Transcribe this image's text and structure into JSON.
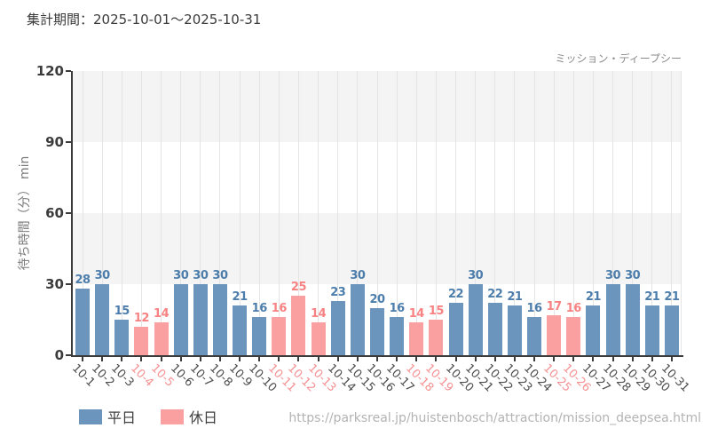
{
  "header": {
    "title": "集計期間：2025-10-01〜2025-10-31"
  },
  "chart_data": {
    "type": "bar",
    "title": "ミッション・ディープシー",
    "xlabel": "",
    "ylabel": "待ち時間（分） min",
    "ylim": [
      0,
      120
    ],
    "yticks": [
      0,
      30,
      60,
      90,
      120
    ],
    "grid": "vertical",
    "legend_position": "bottom-left",
    "categories": [
      "10-1",
      "10-2",
      "10-3",
      "10-4",
      "10-5",
      "10-6",
      "10-7",
      "10-8",
      "10-9",
      "10-10",
      "10-11",
      "10-12",
      "10-13",
      "10-14",
      "10-15",
      "10-16",
      "10-17",
      "10-18",
      "10-19",
      "10-20",
      "10-21",
      "10-22",
      "10-23",
      "10-24",
      "10-25",
      "10-26",
      "10-27",
      "10-28",
      "10-29",
      "10-30",
      "10-31"
    ],
    "values": [
      28,
      30,
      15,
      12,
      14,
      30,
      30,
      30,
      21,
      16,
      16,
      25,
      14,
      23,
      30,
      20,
      16,
      14,
      15,
      22,
      30,
      22,
      21,
      16,
      17,
      16,
      21,
      30,
      30,
      21,
      21
    ],
    "day_types": [
      "weekday",
      "weekday",
      "weekday",
      "holiday",
      "holiday",
      "weekday",
      "weekday",
      "weekday",
      "weekday",
      "weekday",
      "holiday",
      "holiday",
      "holiday",
      "weekday",
      "weekday",
      "weekday",
      "weekday",
      "holiday",
      "holiday",
      "weekday",
      "weekday",
      "weekday",
      "weekday",
      "weekday",
      "holiday",
      "holiday",
      "weekday",
      "weekday",
      "weekday",
      "weekday",
      "weekday"
    ],
    "colors": {
      "weekday_bar": "#6b95bd",
      "holiday_bar": "#faa0a0",
      "weekday_value": "#4c7dab",
      "holiday_value": "#f88282",
      "weekday_tick": "#4d4d4d",
      "holiday_tick": "#f59193",
      "axis": "#3b3b3b",
      "band": "#f4f4f4",
      "gridline": "#e4e4e4"
    }
  },
  "legend": {
    "items": [
      {
        "label": "平日",
        "type": "weekday"
      },
      {
        "label": "休日",
        "type": "holiday"
      }
    ]
  },
  "footer": {
    "url": "https://parksreal.jp/huistenbosch/attraction/mission_deepsea.html"
  }
}
